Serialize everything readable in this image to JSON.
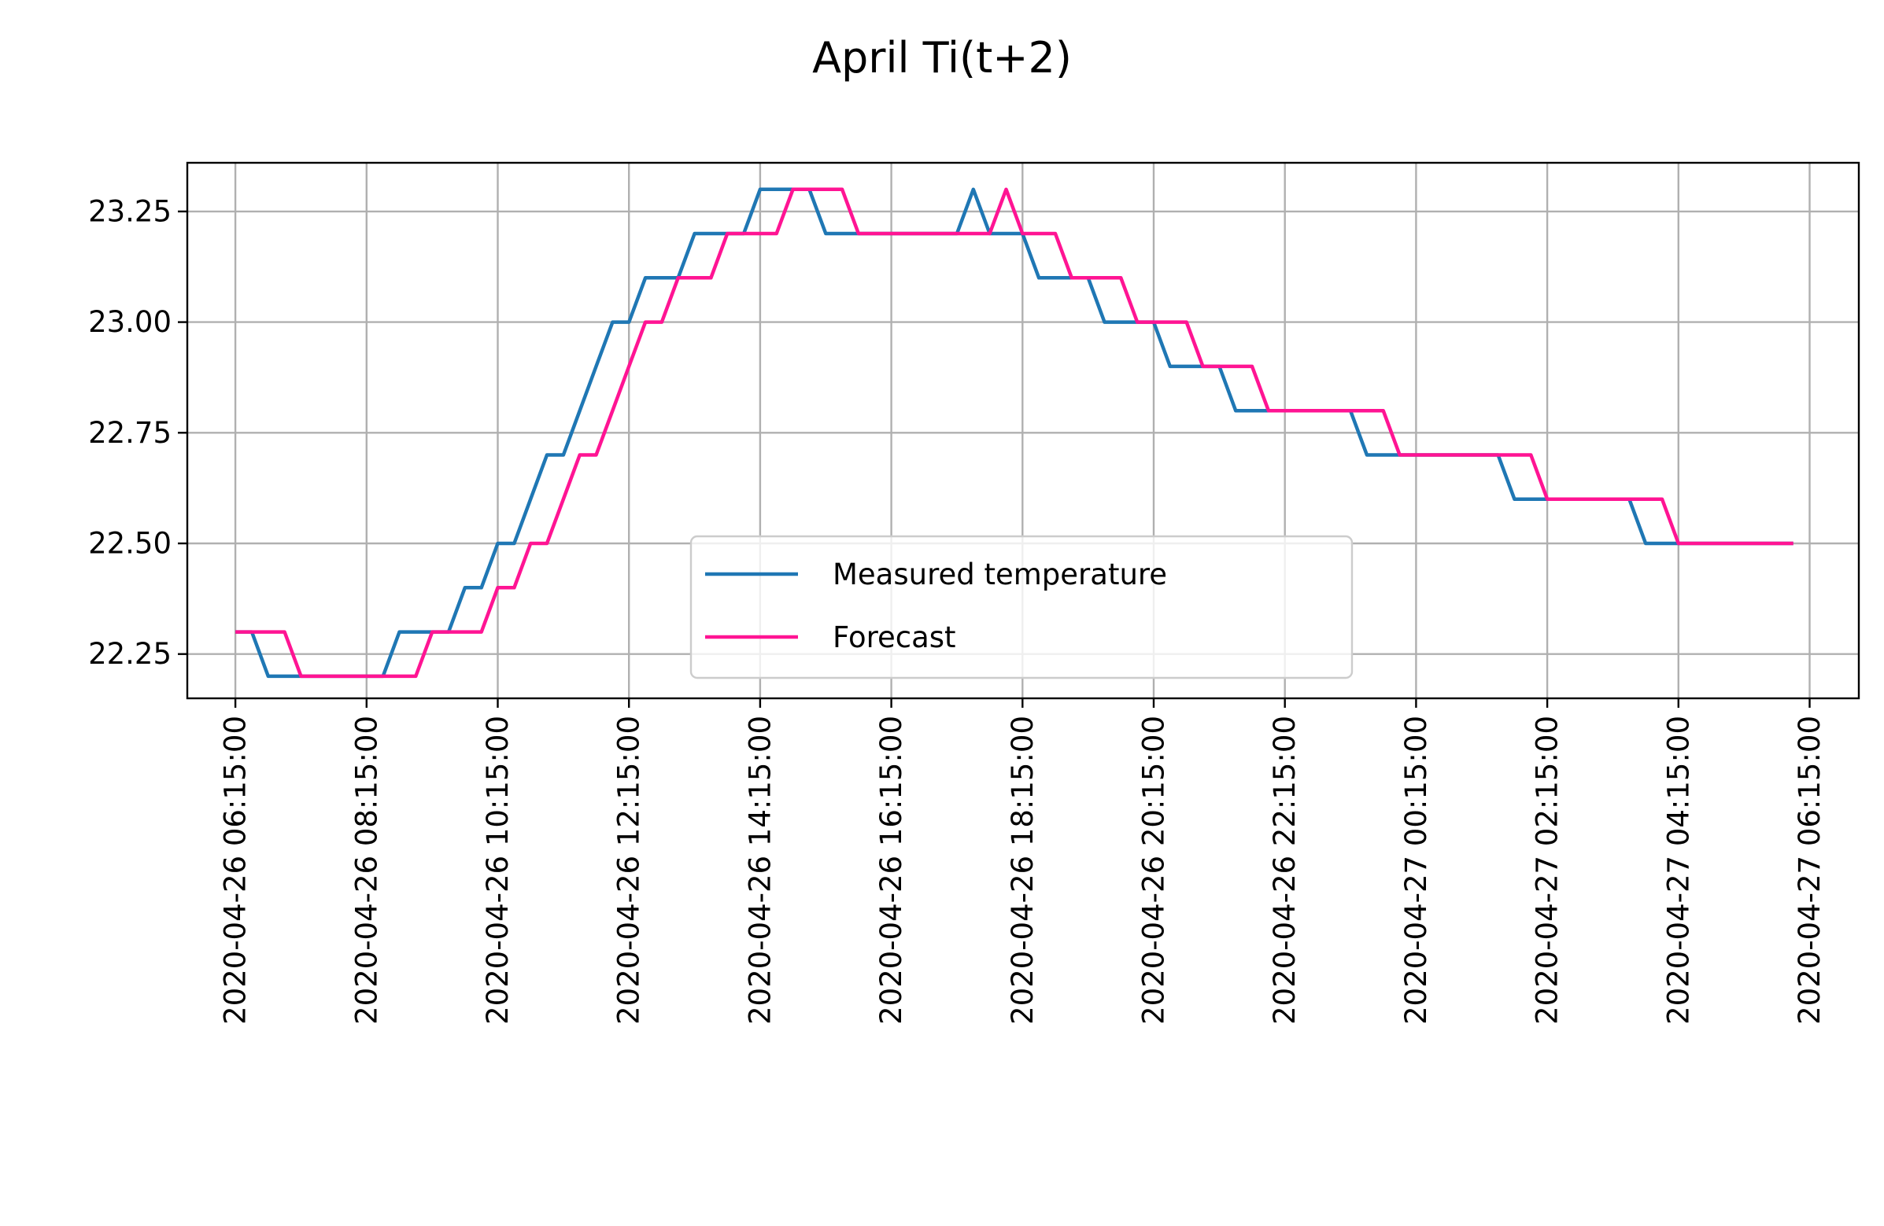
{
  "chart_data": {
    "type": "line",
    "title": "April Ti(t+2)",
    "xlabel": "",
    "ylabel": "",
    "grid": true,
    "legend_position": "lower center",
    "ylim": [
      22.15,
      23.36
    ],
    "xlim": [
      "2020-04-26 05:31:00",
      "2020-04-27 07:00:00"
    ],
    "yticks": [
      "22.25",
      "22.50",
      "22.75",
      "23.00",
      "23.25"
    ],
    "xticks": [
      "2020-04-26 06:15:00",
      "2020-04-26 08:15:00",
      "2020-04-26 10:15:00",
      "2020-04-26 12:15:00",
      "2020-04-26 14:15:00",
      "2020-04-26 16:15:00",
      "2020-04-26 18:15:00",
      "2020-04-26 20:15:00",
      "2020-04-26 22:15:00",
      "2020-04-27 00:15:00",
      "2020-04-27 02:15:00",
      "2020-04-27 04:15:00",
      "2020-04-27 06:15:00"
    ],
    "series": [
      {
        "name": "Measured temperature",
        "color": "#1f77b4",
        "points": [
          [
            "2020-04-26 06:15",
            22.3
          ],
          [
            "2020-04-26 06:30",
            22.3
          ],
          [
            "2020-04-26 06:45",
            22.2
          ],
          [
            "2020-04-26 07:00",
            22.2
          ],
          [
            "2020-04-26 07:15",
            22.2
          ],
          [
            "2020-04-26 07:30",
            22.2
          ],
          [
            "2020-04-26 07:45",
            22.2
          ],
          [
            "2020-04-26 08:00",
            22.2
          ],
          [
            "2020-04-26 08:15",
            22.2
          ],
          [
            "2020-04-26 08:30",
            22.2
          ],
          [
            "2020-04-26 08:45",
            22.3
          ],
          [
            "2020-04-26 09:00",
            22.3
          ],
          [
            "2020-04-26 09:15",
            22.3
          ],
          [
            "2020-04-26 09:30",
            22.3
          ],
          [
            "2020-04-26 09:45",
            22.4
          ],
          [
            "2020-04-26 10:00",
            22.4
          ],
          [
            "2020-04-26 10:15",
            22.5
          ],
          [
            "2020-04-26 10:30",
            22.5
          ],
          [
            "2020-04-26 10:45",
            22.6
          ],
          [
            "2020-04-26 11:00",
            22.7
          ],
          [
            "2020-04-26 11:15",
            22.7
          ],
          [
            "2020-04-26 11:30",
            22.8
          ],
          [
            "2020-04-26 11:45",
            22.9
          ],
          [
            "2020-04-26 12:00",
            23.0
          ],
          [
            "2020-04-26 12:15",
            23.0
          ],
          [
            "2020-04-26 12:30",
            23.1
          ],
          [
            "2020-04-26 12:45",
            23.1
          ],
          [
            "2020-04-26 13:00",
            23.1
          ],
          [
            "2020-04-26 13:15",
            23.2
          ],
          [
            "2020-04-26 13:30",
            23.2
          ],
          [
            "2020-04-26 13:45",
            23.2
          ],
          [
            "2020-04-26 14:00",
            23.2
          ],
          [
            "2020-04-26 14:15",
            23.3
          ],
          [
            "2020-04-26 14:30",
            23.3
          ],
          [
            "2020-04-26 14:45",
            23.3
          ],
          [
            "2020-04-26 15:00",
            23.3
          ],
          [
            "2020-04-26 15:15",
            23.2
          ],
          [
            "2020-04-26 15:30",
            23.2
          ],
          [
            "2020-04-26 15:45",
            23.2
          ],
          [
            "2020-04-26 16:00",
            23.2
          ],
          [
            "2020-04-26 16:15",
            23.2
          ],
          [
            "2020-04-26 16:30",
            23.2
          ],
          [
            "2020-04-26 16:45",
            23.2
          ],
          [
            "2020-04-26 17:00",
            23.2
          ],
          [
            "2020-04-26 17:15",
            23.2
          ],
          [
            "2020-04-26 17:30",
            23.3
          ],
          [
            "2020-04-26 17:45",
            23.2
          ],
          [
            "2020-04-26 18:00",
            23.2
          ],
          [
            "2020-04-26 18:15",
            23.2
          ],
          [
            "2020-04-26 18:30",
            23.1
          ],
          [
            "2020-04-26 18:45",
            23.1
          ],
          [
            "2020-04-26 19:00",
            23.1
          ],
          [
            "2020-04-26 19:15",
            23.1
          ],
          [
            "2020-04-26 19:30",
            23.0
          ],
          [
            "2020-04-26 19:45",
            23.0
          ],
          [
            "2020-04-26 20:00",
            23.0
          ],
          [
            "2020-04-26 20:15",
            23.0
          ],
          [
            "2020-04-26 20:30",
            22.9
          ],
          [
            "2020-04-26 20:45",
            22.9
          ],
          [
            "2020-04-26 21:00",
            22.9
          ],
          [
            "2020-04-26 21:15",
            22.9
          ],
          [
            "2020-04-26 21:30",
            22.8
          ],
          [
            "2020-04-26 21:45",
            22.8
          ],
          [
            "2020-04-26 22:00",
            22.8
          ],
          [
            "2020-04-26 22:15",
            22.8
          ],
          [
            "2020-04-26 22:30",
            22.8
          ],
          [
            "2020-04-26 22:45",
            22.8
          ],
          [
            "2020-04-26 23:00",
            22.8
          ],
          [
            "2020-04-26 23:15",
            22.8
          ],
          [
            "2020-04-26 23:30",
            22.7
          ],
          [
            "2020-04-26 23:45",
            22.7
          ],
          [
            "2020-04-27 00:00",
            22.7
          ],
          [
            "2020-04-27 00:15",
            22.7
          ],
          [
            "2020-04-27 00:30",
            22.7
          ],
          [
            "2020-04-27 00:45",
            22.7
          ],
          [
            "2020-04-27 01:00",
            22.7
          ],
          [
            "2020-04-27 01:15",
            22.7
          ],
          [
            "2020-04-27 01:30",
            22.7
          ],
          [
            "2020-04-27 01:45",
            22.6
          ],
          [
            "2020-04-27 02:00",
            22.6
          ],
          [
            "2020-04-27 02:15",
            22.6
          ],
          [
            "2020-04-27 02:30",
            22.6
          ],
          [
            "2020-04-27 02:45",
            22.6
          ],
          [
            "2020-04-27 03:00",
            22.6
          ],
          [
            "2020-04-27 03:15",
            22.6
          ],
          [
            "2020-04-27 03:30",
            22.6
          ],
          [
            "2020-04-27 03:45",
            22.5
          ],
          [
            "2020-04-27 04:00",
            22.5
          ],
          [
            "2020-04-27 04:15",
            22.5
          ],
          [
            "2020-04-27 04:30",
            22.5
          ],
          [
            "2020-04-27 04:45",
            22.5
          ],
          [
            "2020-04-27 05:00",
            22.5
          ],
          [
            "2020-04-27 05:15",
            22.5
          ],
          [
            "2020-04-27 05:30",
            22.5
          ],
          [
            "2020-04-27 05:45",
            22.5
          ],
          [
            "2020-04-27 06:00",
            22.5
          ]
        ]
      },
      {
        "name": "Forecast",
        "color": "#ff1493",
        "points": [
          [
            "2020-04-26 06:15",
            22.3
          ],
          [
            "2020-04-26 06:30",
            22.3
          ],
          [
            "2020-04-26 06:45",
            22.3
          ],
          [
            "2020-04-26 07:00",
            22.3
          ],
          [
            "2020-04-26 07:15",
            22.2
          ],
          [
            "2020-04-26 07:30",
            22.2
          ],
          [
            "2020-04-26 07:45",
            22.2
          ],
          [
            "2020-04-26 08:00",
            22.2
          ],
          [
            "2020-04-26 08:15",
            22.2
          ],
          [
            "2020-04-26 08:30",
            22.2
          ],
          [
            "2020-04-26 08:45",
            22.2
          ],
          [
            "2020-04-26 09:00",
            22.2
          ],
          [
            "2020-04-26 09:15",
            22.3
          ],
          [
            "2020-04-26 09:30",
            22.3
          ],
          [
            "2020-04-26 09:45",
            22.3
          ],
          [
            "2020-04-26 10:00",
            22.3
          ],
          [
            "2020-04-26 10:15",
            22.4
          ],
          [
            "2020-04-26 10:30",
            22.4
          ],
          [
            "2020-04-26 10:45",
            22.5
          ],
          [
            "2020-04-26 11:00",
            22.5
          ],
          [
            "2020-04-26 11:15",
            22.6
          ],
          [
            "2020-04-26 11:30",
            22.7
          ],
          [
            "2020-04-26 11:45",
            22.7
          ],
          [
            "2020-04-26 12:00",
            22.8
          ],
          [
            "2020-04-26 12:15",
            22.9
          ],
          [
            "2020-04-26 12:30",
            23.0
          ],
          [
            "2020-04-26 12:45",
            23.0
          ],
          [
            "2020-04-26 13:00",
            23.1
          ],
          [
            "2020-04-26 13:15",
            23.1
          ],
          [
            "2020-04-26 13:30",
            23.1
          ],
          [
            "2020-04-26 13:45",
            23.2
          ],
          [
            "2020-04-26 14:00",
            23.2
          ],
          [
            "2020-04-26 14:15",
            23.2
          ],
          [
            "2020-04-26 14:30",
            23.2
          ],
          [
            "2020-04-26 14:45",
            23.3
          ],
          [
            "2020-04-26 15:00",
            23.3
          ],
          [
            "2020-04-26 15:15",
            23.3
          ],
          [
            "2020-04-26 15:30",
            23.3
          ],
          [
            "2020-04-26 15:45",
            23.2
          ],
          [
            "2020-04-26 16:00",
            23.2
          ],
          [
            "2020-04-26 16:15",
            23.2
          ],
          [
            "2020-04-26 16:30",
            23.2
          ],
          [
            "2020-04-26 16:45",
            23.2
          ],
          [
            "2020-04-26 17:00",
            23.2
          ],
          [
            "2020-04-26 17:15",
            23.2
          ],
          [
            "2020-04-26 17:30",
            23.2
          ],
          [
            "2020-04-26 17:45",
            23.2
          ],
          [
            "2020-04-26 18:00",
            23.3
          ],
          [
            "2020-04-26 18:15",
            23.2
          ],
          [
            "2020-04-26 18:30",
            23.2
          ],
          [
            "2020-04-26 18:45",
            23.2
          ],
          [
            "2020-04-26 19:00",
            23.1
          ],
          [
            "2020-04-26 19:15",
            23.1
          ],
          [
            "2020-04-26 19:30",
            23.1
          ],
          [
            "2020-04-26 19:45",
            23.1
          ],
          [
            "2020-04-26 20:00",
            23.0
          ],
          [
            "2020-04-26 20:15",
            23.0
          ],
          [
            "2020-04-26 20:30",
            23.0
          ],
          [
            "2020-04-26 20:45",
            23.0
          ],
          [
            "2020-04-26 21:00",
            22.9
          ],
          [
            "2020-04-26 21:15",
            22.9
          ],
          [
            "2020-04-26 21:30",
            22.9
          ],
          [
            "2020-04-26 21:45",
            22.9
          ],
          [
            "2020-04-26 22:00",
            22.8
          ],
          [
            "2020-04-26 22:15",
            22.8
          ],
          [
            "2020-04-26 22:30",
            22.8
          ],
          [
            "2020-04-26 22:45",
            22.8
          ],
          [
            "2020-04-26 23:00",
            22.8
          ],
          [
            "2020-04-26 23:15",
            22.8
          ],
          [
            "2020-04-26 23:30",
            22.8
          ],
          [
            "2020-04-26 23:45",
            22.8
          ],
          [
            "2020-04-27 00:00",
            22.7
          ],
          [
            "2020-04-27 00:15",
            22.7
          ],
          [
            "2020-04-27 00:30",
            22.7
          ],
          [
            "2020-04-27 00:45",
            22.7
          ],
          [
            "2020-04-27 01:00",
            22.7
          ],
          [
            "2020-04-27 01:15",
            22.7
          ],
          [
            "2020-04-27 01:30",
            22.7
          ],
          [
            "2020-04-27 01:45",
            22.7
          ],
          [
            "2020-04-27 02:00",
            22.7
          ],
          [
            "2020-04-27 02:15",
            22.6
          ],
          [
            "2020-04-27 02:30",
            22.6
          ],
          [
            "2020-04-27 02:45",
            22.6
          ],
          [
            "2020-04-27 03:00",
            22.6
          ],
          [
            "2020-04-27 03:15",
            22.6
          ],
          [
            "2020-04-27 03:30",
            22.6
          ],
          [
            "2020-04-27 03:45",
            22.6
          ],
          [
            "2020-04-27 04:00",
            22.6
          ],
          [
            "2020-04-27 04:15",
            22.5
          ],
          [
            "2020-04-27 04:30",
            22.5
          ],
          [
            "2020-04-27 04:45",
            22.5
          ],
          [
            "2020-04-27 05:00",
            22.5
          ],
          [
            "2020-04-27 05:15",
            22.5
          ],
          [
            "2020-04-27 05:30",
            22.5
          ],
          [
            "2020-04-27 05:45",
            22.5
          ],
          [
            "2020-04-27 06:00",
            22.5
          ]
        ]
      }
    ]
  }
}
